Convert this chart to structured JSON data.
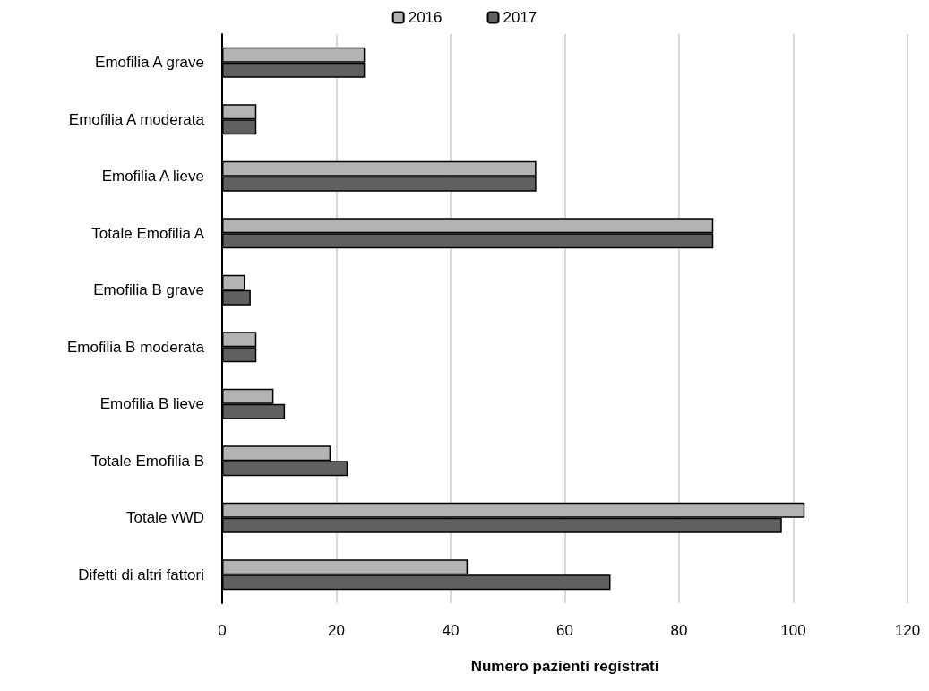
{
  "chart_data": {
    "type": "bar",
    "orientation": "horizontal",
    "xlabel": "Numero pazienti registrati",
    "categories": [
      "Emofilia A grave",
      "Emofilia A moderata",
      "Emofilia A lieve",
      "Totale Emofilia A",
      "Emofilia B grave",
      "Emofilia B moderata",
      "Emofilia B lieve",
      "Totale Emofilia B",
      "Totale vWD",
      "Difetti di altri fattori"
    ],
    "series": [
      {
        "name": "2016",
        "color": "#b3b3b3",
        "values": [
          25,
          6,
          55,
          86,
          4,
          6,
          9,
          19,
          102,
          43
        ]
      },
      {
        "name": "2017",
        "color": "#606060",
        "values": [
          25,
          6,
          55,
          86,
          5,
          6,
          11,
          22,
          98,
          68
        ]
      }
    ],
    "xlim": [
      0,
      120
    ],
    "xticks": [
      0,
      20,
      40,
      60,
      80,
      100,
      120
    ],
    "grid": "x",
    "legend": "top"
  }
}
